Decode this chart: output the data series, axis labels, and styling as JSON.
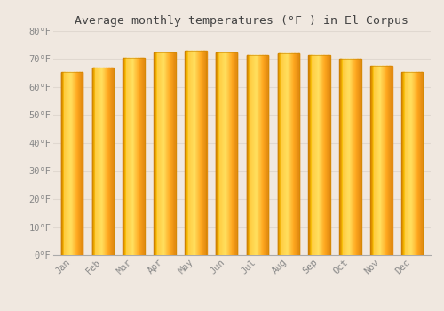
{
  "title": "Average monthly temperatures (°F ) in El Corpus",
  "months": [
    "Jan",
    "Feb",
    "Mar",
    "Apr",
    "May",
    "Jun",
    "Jul",
    "Aug",
    "Sep",
    "Oct",
    "Nov",
    "Dec"
  ],
  "values": [
    65.5,
    67.0,
    70.5,
    72.5,
    73.0,
    72.5,
    71.5,
    72.0,
    71.5,
    70.0,
    67.5,
    65.5
  ],
  "ylim": [
    0,
    80
  ],
  "yticks": [
    0,
    10,
    20,
    30,
    40,
    50,
    60,
    70,
    80
  ],
  "bar_color_main": "#FFA820",
  "bar_color_light": "#FFD860",
  "bar_color_dark": "#E08000",
  "bar_edge_color": "#CC8800",
  "background_color": "#f0e8e0",
  "grid_color": "#e0d8d0",
  "title_fontsize": 9.5,
  "tick_fontsize": 7.5,
  "title_color": "#444444",
  "tick_color": "#888888",
  "figsize": [
    5.0,
    3.5
  ],
  "dpi": 100
}
